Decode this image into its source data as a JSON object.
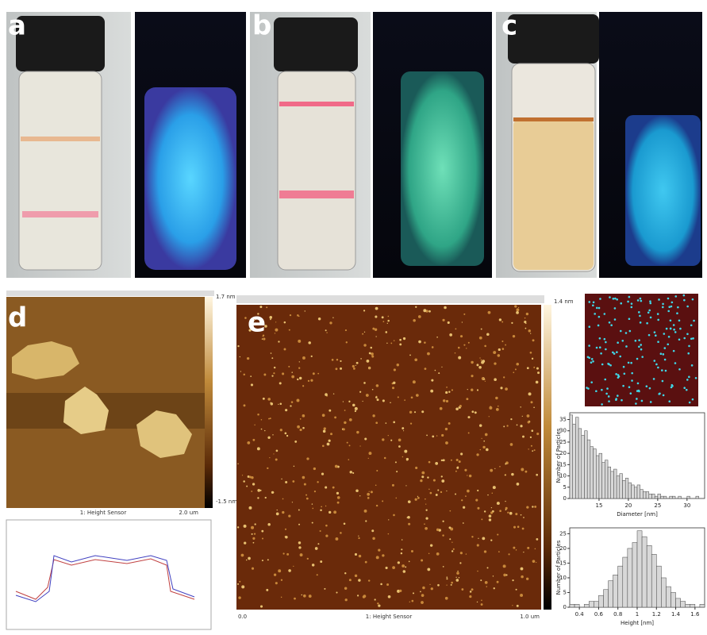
{
  "panels": [
    {
      "label": "a"
    },
    {
      "label": "b"
    },
    {
      "label": "c"
    }
  ],
  "afm_d": {
    "label": "d",
    "scale_max": "1.7 nm",
    "scale_min": "-1.5 nm",
    "scan_size": "2.0 um",
    "channel": "1: Height Sensor"
  },
  "afm_e": {
    "label": "e",
    "scale_max": "1.4 nm",
    "origin": "0.0",
    "scan_size": "1.0 um",
    "channel": "1: Height Sensor"
  },
  "histograms": [
    {
      "type": "bar",
      "x_label": "Diameter [nm]",
      "y_label": "Number of Particles",
      "bins": [
        10,
        10.5,
        11,
        11.5,
        12,
        12.5,
        13,
        13.5,
        14,
        14.5,
        15,
        15.5,
        16,
        16.5,
        17,
        17.5,
        18,
        18.5,
        19,
        19.5,
        20,
        20.5,
        21,
        21.5,
        22,
        22.5,
        23,
        23.5,
        24,
        24.5,
        25,
        25.5,
        26,
        26.5,
        27,
        27.5,
        28,
        28.5,
        29,
        29.5,
        30,
        30.5,
        31,
        31.5,
        32
      ],
      "counts": [
        37,
        33,
        36,
        31,
        28,
        30,
        26,
        23,
        22,
        19,
        20,
        16,
        17,
        14,
        12,
        13,
        10,
        11,
        8,
        9,
        7,
        6,
        5,
        6,
        4,
        3,
        3,
        2,
        2,
        1,
        2,
        1,
        1,
        0,
        1,
        1,
        0,
        1,
        0,
        0,
        1,
        0,
        0,
        1
      ],
      "xlim": [
        10,
        33
      ],
      "ylim": [
        0,
        38
      ],
      "xticks": [
        15,
        20,
        25,
        30
      ],
      "yticks": [
        0,
        5,
        10,
        15,
        20,
        25,
        30,
        35
      ]
    },
    {
      "type": "bar",
      "x_label": "Height [nm]",
      "y_label": "Number of Particles",
      "bins": [
        0.3,
        0.35,
        0.4,
        0.45,
        0.5,
        0.55,
        0.6,
        0.65,
        0.7,
        0.75,
        0.8,
        0.85,
        0.9,
        0.95,
        1.0,
        1.05,
        1.1,
        1.15,
        1.2,
        1.25,
        1.3,
        1.35,
        1.4,
        1.45,
        1.5,
        1.55,
        1.6,
        1.65,
        1.7
      ],
      "counts": [
        1,
        1,
        0,
        1,
        2,
        2,
        4,
        6,
        9,
        11,
        14,
        17,
        20,
        22,
        26,
        24,
        21,
        18,
        14,
        10,
        7,
        5,
        3,
        2,
        1,
        1,
        0,
        1
      ],
      "xlim": [
        0.3,
        1.7
      ],
      "ylim": [
        0,
        27
      ],
      "xticks": [
        0.4,
        0.6,
        0.8,
        1,
        1.2,
        1.4,
        1.6
      ],
      "yticks": [
        0,
        5,
        10,
        15,
        20,
        25
      ]
    }
  ]
}
